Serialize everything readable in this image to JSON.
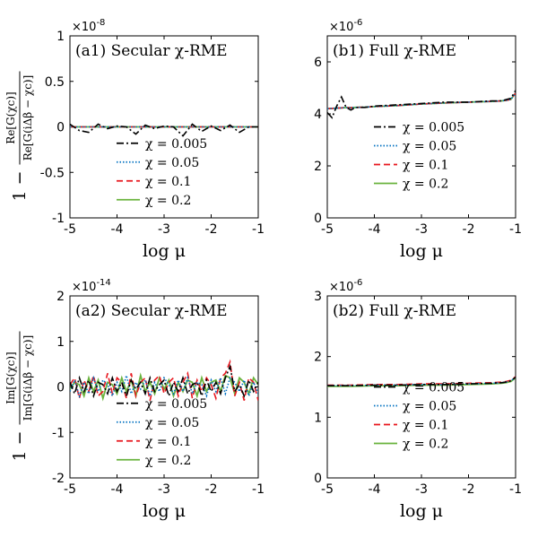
{
  "chart_data": [
    {
      "id": "a1",
      "type": "line",
      "title": "(a1) Secular χ-RME",
      "xlabel": "log μ",
      "ylabel": "1 − Re[G(χc)] / Re[G(iΔβ − χc)]",
      "y_multiplier": "×10-8",
      "xlim": [
        -5,
        -1
      ],
      "ylim": [
        -1,
        1
      ],
      "xticks": [
        "-5",
        "-4",
        "-3",
        "-2",
        "-1"
      ],
      "yticks": [
        "-1",
        "-0.5",
        "0",
        "0.5",
        "1"
      ],
      "legend_position": "lower-center",
      "x": [
        -5.0,
        -4.8,
        -4.6,
        -4.4,
        -4.2,
        -4.0,
        -3.8,
        -3.6,
        -3.4,
        -3.2,
        -3.0,
        -2.8,
        -2.6,
        -2.4,
        -2.2,
        -2.0,
        -1.8,
        -1.6,
        -1.4,
        -1.2,
        -1.0
      ],
      "series": [
        {
          "name": "χ = 0.005",
          "style": "dashdot",
          "color": "#000000",
          "values": [
            0.03,
            -0.04,
            -0.06,
            0.03,
            -0.02,
            0.01,
            0.0,
            -0.08,
            0.02,
            -0.02,
            0.01,
            0.0,
            -0.1,
            0.03,
            -0.05,
            0.01,
            -0.04,
            0.02,
            -0.06,
            0.0,
            0.0
          ]
        },
        {
          "name": "χ = 0.05",
          "style": "dotted",
          "color": "#0070c0",
          "values": [
            0.0,
            0.0,
            0.0,
            0.0,
            0.0,
            0.0,
            0.0,
            0.0,
            0.0,
            0.0,
            0.0,
            0.0,
            0.0,
            0.0,
            0.0,
            0.0,
            0.0,
            0.0,
            0.0,
            0.0,
            0.0
          ]
        },
        {
          "name": "χ = 0.1",
          "style": "dashed",
          "color": "#e8171f",
          "values": [
            0.0,
            0.0,
            0.0,
            0.0,
            0.0,
            0.0,
            0.0,
            0.0,
            0.0,
            0.0,
            0.0,
            0.0,
            0.0,
            0.0,
            0.0,
            0.0,
            0.0,
            0.0,
            0.0,
            0.0,
            0.0
          ]
        },
        {
          "name": "χ = 0.2",
          "style": "solid",
          "color": "#6ab33e",
          "values": [
            0.0,
            0.0,
            0.0,
            0.0,
            0.0,
            0.0,
            0.0,
            0.0,
            0.0,
            0.0,
            0.0,
            0.0,
            0.0,
            0.0,
            0.0,
            0.0,
            0.0,
            0.0,
            0.0,
            0.0,
            0.0
          ]
        }
      ]
    },
    {
      "id": "b1",
      "type": "line",
      "title": "(b1) Full χ-RME",
      "xlabel": "log μ",
      "ylabel": "",
      "y_multiplier": "×10-6",
      "xlim": [
        -5,
        -1
      ],
      "ylim": [
        0,
        7
      ],
      "xticks": [
        "-5",
        "-4",
        "-3",
        "-2",
        "-1"
      ],
      "yticks": [
        "0",
        "2",
        "4",
        "6"
      ],
      "legend_position": "lower-center",
      "x": [
        -5.0,
        -4.9,
        -4.8,
        -4.7,
        -4.6,
        -4.5,
        -4.4,
        -4.2,
        -4.0,
        -3.5,
        -3.0,
        -2.5,
        -2.0,
        -1.5,
        -1.3,
        -1.2,
        -1.1,
        -1.0
      ],
      "series": [
        {
          "name": "χ = 0.005",
          "style": "dashdot",
          "color": "#000000",
          "values": [
            4.05,
            3.85,
            4.3,
            4.65,
            4.25,
            4.15,
            4.25,
            4.25,
            4.3,
            4.35,
            4.4,
            4.45,
            4.45,
            4.5,
            4.5,
            4.55,
            4.6,
            4.9
          ]
        },
        {
          "name": "χ = 0.05",
          "style": "dotted",
          "color": "#0070c0",
          "values": [
            4.2,
            4.21,
            4.22,
            4.23,
            4.24,
            4.24,
            4.25,
            4.26,
            4.28,
            4.32,
            4.38,
            4.42,
            4.45,
            4.48,
            4.5,
            4.52,
            4.56,
            4.8
          ]
        },
        {
          "name": "χ = 0.1",
          "style": "dashed",
          "color": "#e8171f",
          "values": [
            4.2,
            4.21,
            4.22,
            4.23,
            4.24,
            4.24,
            4.25,
            4.26,
            4.28,
            4.32,
            4.38,
            4.42,
            4.45,
            4.48,
            4.5,
            4.52,
            4.56,
            4.8
          ]
        },
        {
          "name": "χ = 0.2",
          "style": "solid",
          "color": "#6ab33e",
          "values": [
            4.2,
            4.21,
            4.22,
            4.23,
            4.24,
            4.24,
            4.25,
            4.26,
            4.28,
            4.32,
            4.38,
            4.42,
            4.45,
            4.48,
            4.5,
            4.52,
            4.56,
            4.8
          ]
        }
      ]
    },
    {
      "id": "a2",
      "type": "line",
      "title": "(a2) Secular χ-RME",
      "xlabel": "log μ",
      "ylabel": "1 − Im[G(χc)] / Im[G(iΔβ − χc)]",
      "y_multiplier": "×10-14",
      "xlim": [
        -5,
        -1
      ],
      "ylim": [
        -2,
        2
      ],
      "xticks": [
        "-5",
        "-4",
        "-3",
        "-2",
        "-1"
      ],
      "yticks": [
        "-2",
        "-1",
        "0",
        "1",
        "2"
      ],
      "legend_position": "lower-center",
      "x": [
        -5.0,
        -4.9,
        -4.8,
        -4.7,
        -4.6,
        -4.5,
        -4.4,
        -4.3,
        -4.2,
        -4.1,
        -4.0,
        -3.9,
        -3.8,
        -3.7,
        -3.6,
        -3.5,
        -3.4,
        -3.3,
        -3.2,
        -3.1,
        -3.0,
        -2.9,
        -2.8,
        -2.7,
        -2.6,
        -2.5,
        -2.4,
        -2.3,
        -2.2,
        -2.1,
        -2.0,
        -1.9,
        -1.8,
        -1.7,
        -1.6,
        -1.5,
        -1.4,
        -1.3,
        -1.2,
        -1.1,
        -1.0
      ],
      "series": [
        {
          "name": "χ = 0.005",
          "style": "dashdot",
          "color": "#000000",
          "values": [
            0.1,
            -0.15,
            0.2,
            -0.1,
            0.15,
            -0.2,
            0.1,
            0.05,
            -0.15,
            0.2,
            -0.1,
            0.1,
            -0.2,
            0.15,
            -0.05,
            0.1,
            -0.15,
            0.2,
            -0.1,
            0.05,
            0.15,
            -0.2,
            0.1,
            -0.1,
            0.2,
            -0.15,
            0.05,
            0.1,
            -0.2,
            0.15,
            -0.1,
            0.1,
            -0.15,
            0.2,
            0.45,
            -0.1,
            0.05,
            -0.2,
            0.15,
            -0.1,
            0.1
          ]
        },
        {
          "name": "χ = 0.05",
          "style": "dotted",
          "color": "#0070c0",
          "values": [
            -0.1,
            0.15,
            -0.2,
            0.1,
            -0.15,
            0.2,
            -0.1,
            0.15,
            0.05,
            -0.2,
            0.1,
            -0.1,
            0.25,
            -0.15,
            0.1,
            -0.05,
            0.15,
            -0.2,
            0.1,
            -0.1,
            0.2,
            0.05,
            -0.15,
            0.15,
            -0.1,
            0.2,
            -0.15,
            0.1,
            0.05,
            -0.2,
            0.15,
            -0.1,
            0.2,
            -0.15,
            0.2,
            0.1,
            -0.1,
            0.15,
            -0.2,
            0.1,
            -0.15
          ]
        },
        {
          "name": "χ = 0.1",
          "style": "dashed",
          "color": "#e8171f",
          "values": [
            0.05,
            0.2,
            -0.25,
            0.15,
            -0.1,
            0.25,
            -0.2,
            -0.1,
            0.3,
            -0.15,
            0.2,
            0.1,
            -0.25,
            0.3,
            -0.2,
            0.1,
            0.2,
            -0.3,
            0.15,
            0.25,
            -0.15,
            0.1,
            0.2,
            -0.2,
            0.1,
            0.3,
            -0.25,
            0.15,
            -0.1,
            0.2,
            0.05,
            -0.25,
            0.2,
            0.3,
            0.55,
            -0.2,
            0.1,
            -0.3,
            0.2,
            0.1,
            -0.3
          ]
        },
        {
          "name": "χ = 0.2",
          "style": "solid",
          "color": "#6ab33e",
          "values": [
            -0.05,
            0.1,
            0.05,
            -0.2,
            0.2,
            -0.1,
            0.15,
            -0.25,
            0.1,
            0.05,
            -0.15,
            0.2,
            -0.1,
            0.15,
            -0.2,
            0.25,
            -0.1,
            0.1,
            -0.15,
            0.2,
            -0.05,
            0.15,
            -0.2,
            0.1,
            -0.1,
            0.15,
            0.1,
            -0.2,
            0.2,
            -0.1,
            0.1,
            0.15,
            -0.1,
            0.25,
            0.2,
            -0.15,
            0.2,
            0.1,
            -0.15,
            0.2,
            0.05
          ]
        }
      ]
    },
    {
      "id": "b2",
      "type": "line",
      "title": "(b2) Full χ-RME",
      "xlabel": "log μ",
      "ylabel": "",
      "y_multiplier": "×10-6",
      "xlim": [
        -5,
        -1
      ],
      "ylim": [
        0,
        3
      ],
      "xticks": [
        "-5",
        "-4",
        "-3",
        "-2",
        "-1"
      ],
      "yticks": [
        "0",
        "1",
        "2",
        "3"
      ],
      "legend_position": "lower-center",
      "x": [
        -5.0,
        -4.5,
        -4.0,
        -3.5,
        -3.0,
        -2.5,
        -2.0,
        -1.5,
        -1.3,
        -1.2,
        -1.1,
        -1.0
      ],
      "series": [
        {
          "name": "χ = 0.005",
          "style": "dashdot",
          "color": "#000000",
          "values": [
            1.52,
            1.52,
            1.53,
            1.53,
            1.54,
            1.54,
            1.55,
            1.56,
            1.57,
            1.58,
            1.6,
            1.66
          ]
        },
        {
          "name": "χ = 0.05",
          "style": "dotted",
          "color": "#0070c0",
          "values": [
            1.52,
            1.52,
            1.53,
            1.53,
            1.54,
            1.54,
            1.55,
            1.56,
            1.57,
            1.58,
            1.6,
            1.66
          ]
        },
        {
          "name": "χ = 0.1",
          "style": "dashed",
          "color": "#e8171f",
          "values": [
            1.53,
            1.53,
            1.54,
            1.54,
            1.55,
            1.55,
            1.56,
            1.57,
            1.58,
            1.59,
            1.61,
            1.67
          ]
        },
        {
          "name": "χ = 0.2",
          "style": "solid",
          "color": "#6ab33e",
          "values": [
            1.51,
            1.51,
            1.52,
            1.52,
            1.53,
            1.53,
            1.54,
            1.55,
            1.56,
            1.57,
            1.59,
            1.65
          ]
        }
      ]
    }
  ]
}
